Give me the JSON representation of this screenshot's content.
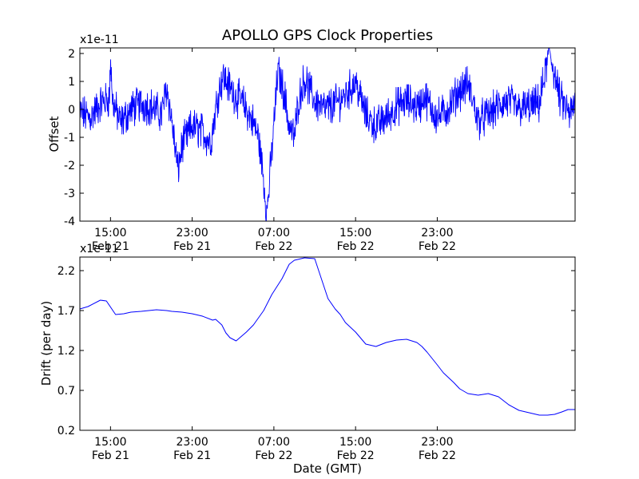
{
  "title": "APOLLO GPS Clock Properties",
  "line_color": "#0000ff",
  "chart_data": [
    {
      "type": "line",
      "name": "offset",
      "ylabel": "Offset",
      "multiplier": "x1e-11",
      "xlim": [
        12,
        60.5
      ],
      "ylim": [
        -4,
        2.2
      ],
      "yticks": [
        {
          "value": -4,
          "label": "-4"
        },
        {
          "value": -3,
          "label": "-3"
        },
        {
          "value": -2,
          "label": "-2"
        },
        {
          "value": -1,
          "label": "-1"
        },
        {
          "value": 0,
          "label": "0"
        },
        {
          "value": 1,
          "label": "1"
        },
        {
          "value": 2,
          "label": "2"
        }
      ],
      "xticks": [
        {
          "value": 15,
          "time": "15:00",
          "date": "Feb 21"
        },
        {
          "value": 23,
          "time": "23:00",
          "date": "Feb 21"
        },
        {
          "value": 31,
          "time": "07:00",
          "date": "Feb 22"
        },
        {
          "value": 39,
          "time": "15:00",
          "date": "Feb 22"
        },
        {
          "value": 47,
          "time": "23:00",
          "date": "Feb 22"
        }
      ],
      "series": [
        {
          "name": "Offset",
          "note": "noisy signal; approximate envelope (x: hours since Feb 21 00:00, y in units of 1e-11)",
          "x": [
            12,
            13,
            14,
            14.9,
            15,
            15.2,
            16,
            17,
            18,
            19,
            20,
            20.5,
            21,
            21.6,
            22,
            23,
            24,
            24.8,
            25.5,
            26,
            27,
            28,
            29,
            29.5,
            30,
            30.3,
            30.8,
            31.4,
            32,
            32.5,
            33,
            33.4,
            34,
            35,
            36,
            37,
            38,
            39,
            40,
            41,
            42,
            43,
            44,
            45,
            45.4,
            45.7,
            46,
            47,
            48,
            49,
            50,
            50.5,
            51,
            52,
            53,
            54,
            55,
            56,
            57,
            58,
            59,
            60,
            60.5
          ],
          "y": [
            -0.1,
            -0.3,
            0.2,
            0.4,
            1.8,
            0.3,
            -0.5,
            0.0,
            0.2,
            0.1,
            -0.2,
            0.8,
            -0.4,
            -2.2,
            -1.3,
            -0.6,
            -0.8,
            -1.2,
            0.5,
            1.2,
            0.6,
            0.2,
            -0.5,
            -1.0,
            -2.5,
            -3.8,
            -1.5,
            1.4,
            0.6,
            -0.6,
            -1.0,
            0.3,
            1.1,
            0.3,
            0.0,
            0.2,
            0.5,
            1.0,
            -0.2,
            -0.6,
            -0.3,
            0.1,
            0.3,
            0.1,
            0.2,
            0.5,
            0.3,
            -0.3,
            0.0,
            0.6,
            0.9,
            0.3,
            -0.4,
            -0.2,
            0.1,
            0.3,
            0.0,
            0.1,
            0.2,
            2.1,
            0.4,
            -0.2,
            0.2
          ]
        }
      ]
    },
    {
      "type": "line",
      "name": "drift",
      "ylabel": "Drift (per day)",
      "xlabel": "Date (GMT)",
      "multiplier": "x1e-11",
      "xlim": [
        12,
        60.5
      ],
      "ylim": [
        0.2,
        2.37
      ],
      "yticks": [
        {
          "value": 0.2,
          "label": "0.2"
        },
        {
          "value": 0.7,
          "label": "0.7"
        },
        {
          "value": 1.2,
          "label": "1.2"
        },
        {
          "value": 1.7,
          "label": "1.7"
        },
        {
          "value": 2.2,
          "label": "2.2"
        }
      ],
      "xticks": [
        {
          "value": 15,
          "time": "15:00",
          "date": "Feb 21"
        },
        {
          "value": 23,
          "time": "23:00",
          "date": "Feb 21"
        },
        {
          "value": 31,
          "time": "07:00",
          "date": "Feb 22"
        },
        {
          "value": 39,
          "time": "15:00",
          "date": "Feb 22"
        },
        {
          "value": 47,
          "time": "23:00",
          "date": "Feb 22"
        }
      ],
      "series": [
        {
          "name": "Drift",
          "x": [
            12,
            12.8,
            14,
            14.6,
            15.5,
            16.3,
            17,
            18,
            19.5,
            20.5,
            21,
            22,
            23,
            24,
            25,
            25.3,
            25.9,
            26.3,
            26.7,
            27.3,
            28.3,
            29,
            30,
            30.8,
            31.8,
            32.5,
            33,
            34,
            35,
            36.3,
            37,
            37.5,
            38,
            39,
            40,
            41,
            42,
            43,
            44,
            45,
            45.5,
            46,
            46.5,
            47,
            47.6,
            48.1,
            48.6,
            49.2,
            50,
            51,
            52,
            53,
            53.5,
            54,
            55,
            56,
            57,
            57.8,
            58.5,
            59.2,
            59.8,
            60.5
          ],
          "y": [
            1.72,
            1.75,
            1.83,
            1.82,
            1.65,
            1.66,
            1.68,
            1.69,
            1.71,
            1.7,
            1.69,
            1.68,
            1.66,
            1.63,
            1.58,
            1.59,
            1.52,
            1.42,
            1.36,
            1.32,
            1.43,
            1.52,
            1.7,
            1.9,
            2.1,
            2.28,
            2.33,
            2.36,
            2.35,
            1.85,
            1.72,
            1.65,
            1.55,
            1.43,
            1.28,
            1.25,
            1.3,
            1.33,
            1.34,
            1.3,
            1.25,
            1.18,
            1.1,
            1.02,
            0.92,
            0.86,
            0.8,
            0.72,
            0.66,
            0.64,
            0.66,
            0.62,
            0.57,
            0.52,
            0.45,
            0.42,
            0.39,
            0.39,
            0.4,
            0.43,
            0.46,
            0.46
          ]
        }
      ]
    }
  ]
}
